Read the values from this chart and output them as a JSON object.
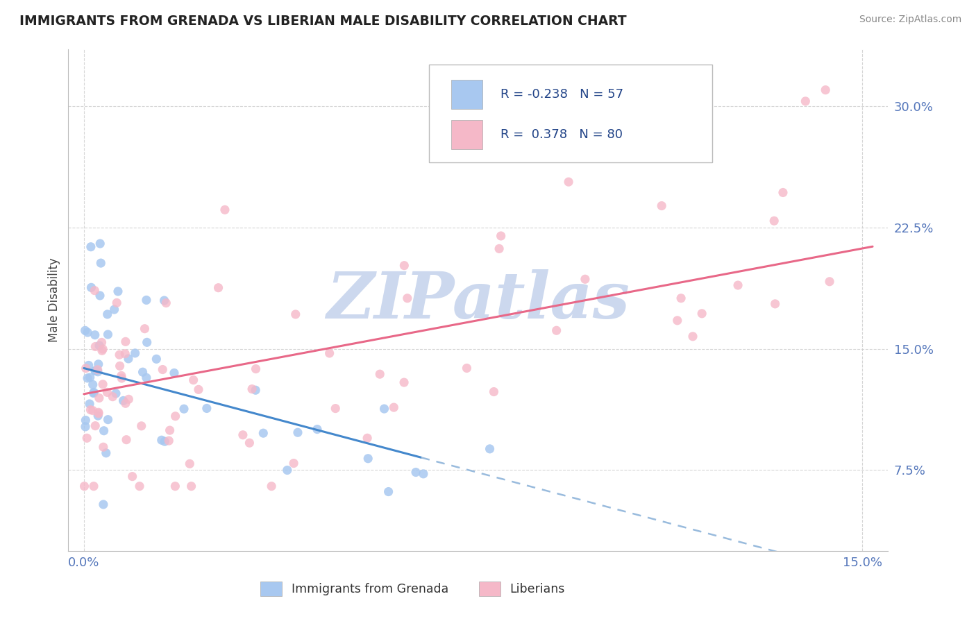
{
  "title": "IMMIGRANTS FROM GRENADA VS LIBERIAN MALE DISABILITY CORRELATION CHART",
  "source": "Source: ZipAtlas.com",
  "ylabel_label": "Male Disability",
  "xlim": [
    -0.003,
    0.155
  ],
  "ylim": [
    0.025,
    0.335
  ],
  "x_ticks": [
    0.0,
    0.15
  ],
  "x_tick_labels": [
    "0.0%",
    "15.0%"
  ],
  "y_ticks": [
    0.075,
    0.15,
    0.225,
    0.3
  ],
  "y_tick_labels": [
    "7.5%",
    "15.0%",
    "22.5%",
    "30.0%"
  ],
  "r_grenada": -0.238,
  "n_grenada": 57,
  "r_liberian": 0.378,
  "n_liberian": 80,
  "color_grenada": "#a8c8f0",
  "color_liberian": "#f5b8c8",
  "line_color_grenada": "#4488cc",
  "line_color_liberian": "#e86888",
  "line_color_grenada_ext": "#99bbdd",
  "tick_color": "#5577bb",
  "grid_color": "#cccccc",
  "title_color": "#222222",
  "source_color": "#888888",
  "watermark": "ZIPatlas",
  "ylabel_color": "#444444",
  "legend_text_color": "#224488",
  "legend_label_color": "#333333"
}
